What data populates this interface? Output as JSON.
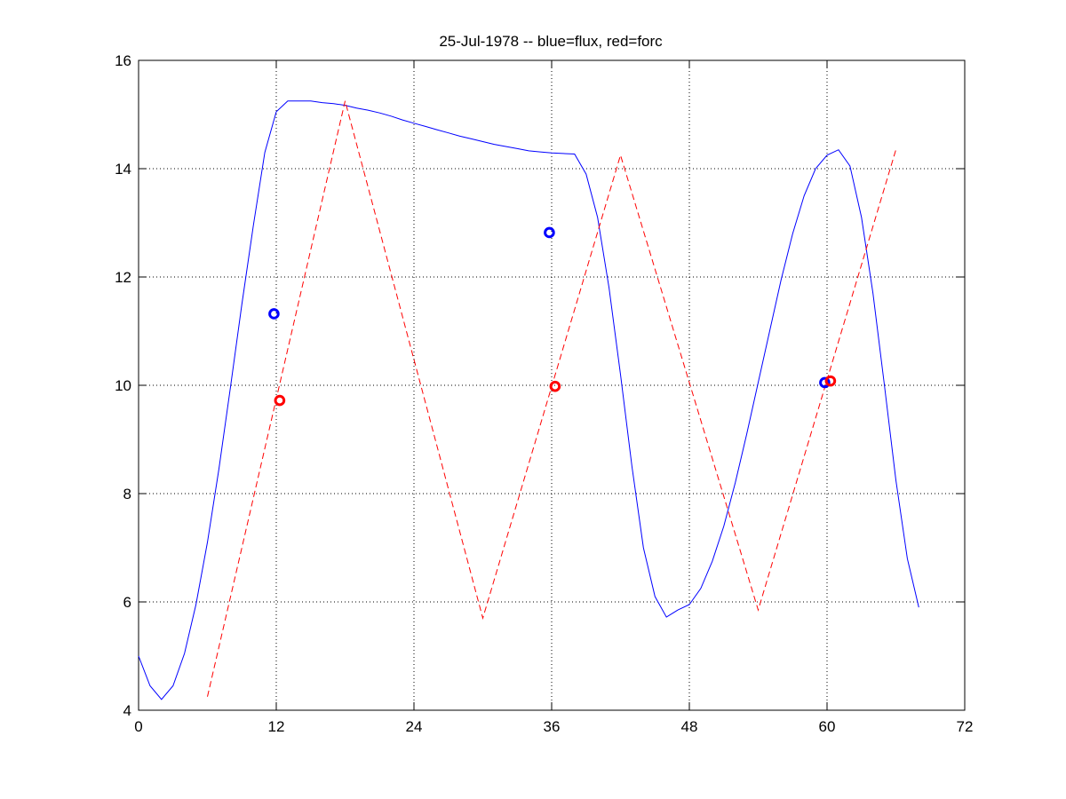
{
  "chart_data": {
    "type": "line",
    "title": "25-Jul-1978 -- blue=flux, red=forc",
    "xlabel": "",
    "ylabel": "",
    "xlim": [
      0,
      72
    ],
    "ylim": [
      4,
      16
    ],
    "xticks": [
      0,
      12,
      24,
      36,
      48,
      60,
      72
    ],
    "yticks": [
      4,
      6,
      8,
      10,
      12,
      14,
      16
    ],
    "grid": true,
    "series": [
      {
        "style": "solid",
        "color": "#0000ff",
        "points": [
          [
            0,
            5.0
          ],
          [
            1,
            4.45
          ],
          [
            2,
            4.2
          ],
          [
            3,
            4.45
          ],
          [
            4,
            5.05
          ],
          [
            5,
            5.95
          ],
          [
            6,
            7.1
          ],
          [
            7,
            8.45
          ],
          [
            8,
            9.95
          ],
          [
            9,
            11.5
          ],
          [
            10,
            12.95
          ],
          [
            11,
            14.3
          ],
          [
            12,
            15.05
          ],
          [
            13,
            15.25
          ],
          [
            14,
            15.25
          ],
          [
            15,
            15.25
          ],
          [
            16,
            15.22
          ],
          [
            17,
            15.2
          ],
          [
            18,
            15.17
          ],
          [
            19,
            15.12
          ],
          [
            20,
            15.08
          ],
          [
            21,
            15.03
          ],
          [
            22,
            14.97
          ],
          [
            23,
            14.9
          ],
          [
            24,
            14.84
          ],
          [
            25,
            14.78
          ],
          [
            26,
            14.72
          ],
          [
            27,
            14.66
          ],
          [
            28,
            14.6
          ],
          [
            29,
            14.55
          ],
          [
            30,
            14.5
          ],
          [
            31,
            14.45
          ],
          [
            32,
            14.41
          ],
          [
            33,
            14.37
          ],
          [
            34,
            14.33
          ],
          [
            35,
            14.31
          ],
          [
            36,
            14.29
          ],
          [
            37,
            14.28
          ],
          [
            38,
            14.27
          ],
          [
            39,
            13.9
          ],
          [
            40,
            13.1
          ],
          [
            41,
            11.8
          ],
          [
            42,
            10.2
          ],
          [
            43,
            8.5
          ],
          [
            44,
            7.0
          ],
          [
            45,
            6.1
          ],
          [
            46,
            5.72
          ],
          [
            47,
            5.85
          ],
          [
            48,
            5.95
          ],
          [
            49,
            6.25
          ],
          [
            50,
            6.75
          ],
          [
            51,
            7.4
          ],
          [
            52,
            8.2
          ],
          [
            53,
            9.1
          ],
          [
            54,
            10.05
          ],
          [
            55,
            11.0
          ],
          [
            56,
            11.95
          ],
          [
            57,
            12.8
          ],
          [
            58,
            13.5
          ],
          [
            59,
            14.0
          ],
          [
            60,
            14.25
          ],
          [
            61,
            14.35
          ],
          [
            62,
            14.05
          ],
          [
            63,
            13.1
          ],
          [
            64,
            11.7
          ],
          [
            65,
            10.0
          ],
          [
            66,
            8.25
          ],
          [
            67,
            6.8
          ],
          [
            68,
            5.9
          ]
        ]
      },
      {
        "style": "dashed",
        "color": "#ff0000",
        "points": [
          [
            6,
            4.25
          ],
          [
            18,
            15.25
          ],
          [
            30,
            5.7
          ],
          [
            42,
            14.25
          ],
          [
            54,
            5.85
          ],
          [
            66,
            14.35
          ]
        ]
      }
    ],
    "markers": [
      {
        "color": "#0000ff",
        "x": 11.8,
        "y": 11.32
      },
      {
        "color": "#0000ff",
        "x": 35.8,
        "y": 12.82
      },
      {
        "color": "#0000ff",
        "x": 59.8,
        "y": 10.05
      },
      {
        "color": "#ff0000",
        "x": 12.3,
        "y": 9.72
      },
      {
        "color": "#ff0000",
        "x": 36.3,
        "y": 9.98
      },
      {
        "color": "#ff0000",
        "x": 60.3,
        "y": 10.08
      }
    ]
  }
}
